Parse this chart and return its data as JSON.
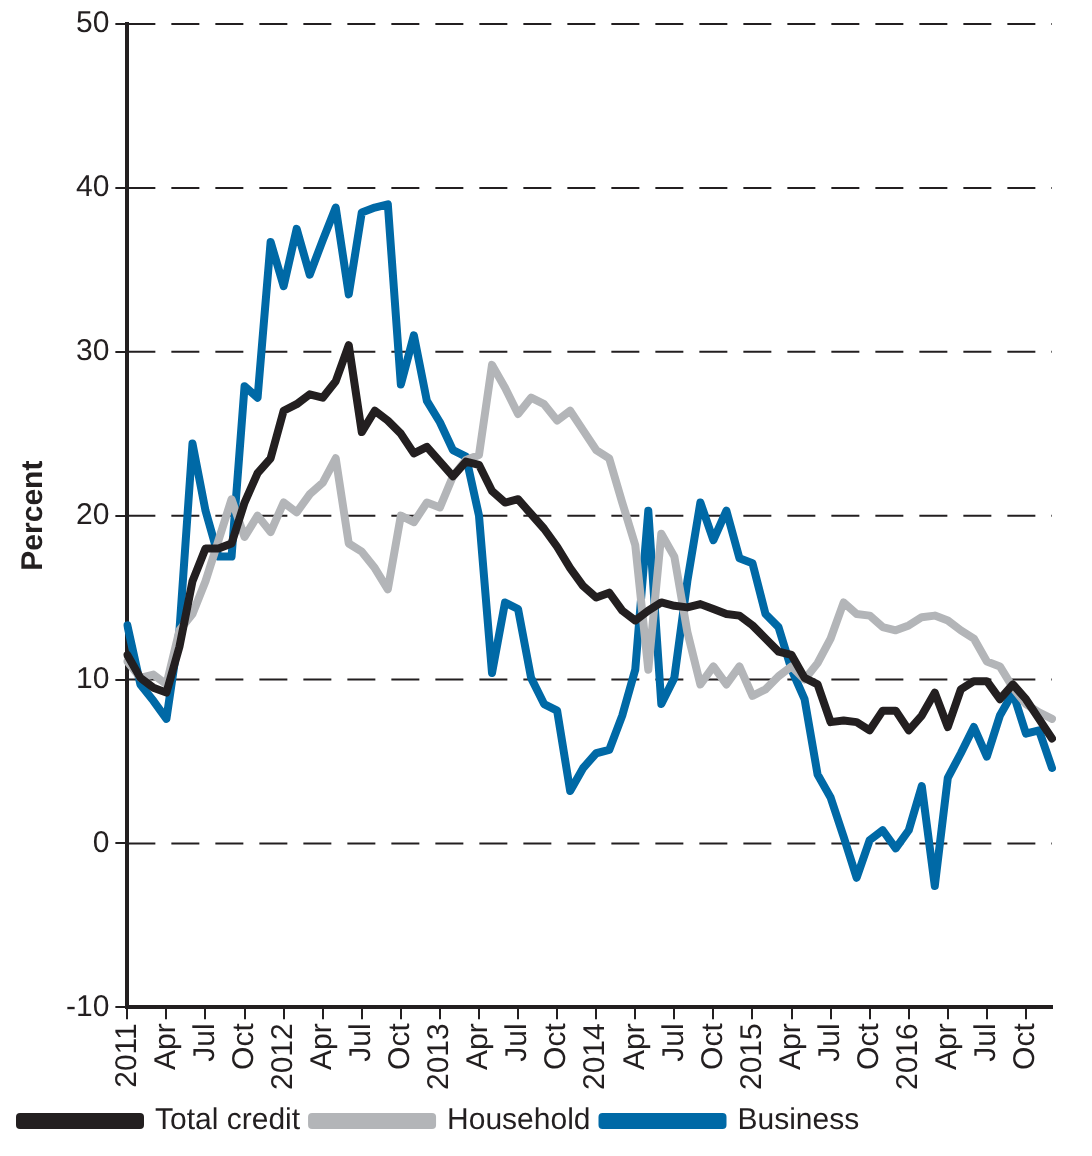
{
  "chart_data": {
    "type": "line",
    "ylabel": "Percent",
    "categories": [
      "2011",
      null,
      null,
      "Apr",
      null,
      null,
      "Jul",
      null,
      null,
      "Oct",
      null,
      null,
      "2012",
      null,
      null,
      "Apr",
      null,
      null,
      "Jul",
      null,
      null,
      "Oct",
      null,
      null,
      "2013",
      null,
      null,
      "Apr",
      null,
      null,
      "Jul",
      null,
      null,
      "Oct",
      null,
      null,
      "2014",
      null,
      null,
      "Apr",
      null,
      null,
      "Jul",
      null,
      null,
      "Oct",
      null,
      null,
      "2015",
      null,
      null,
      "Apr",
      null,
      null,
      "Jul",
      null,
      null,
      "Oct",
      null,
      null,
      "2016",
      null,
      null,
      "Apr",
      null,
      null,
      "Jul",
      null,
      null,
      "Oct",
      null,
      null
    ],
    "series": [
      {
        "name": "Total credit",
        "color": "#231f20",
        "values": [
          11.5,
          10.1,
          9.5,
          9.2,
          12,
          16,
          18,
          18,
          18.3,
          20.8,
          22.6,
          23.5,
          26.4,
          26.8,
          27.4,
          27.2,
          28.2,
          30.4,
          25.1,
          26.4,
          25.8,
          25,
          23.8,
          24.2,
          23.3,
          22.4,
          23.3,
          23.1,
          21.5,
          20.8,
          21,
          20.1,
          19.2,
          18.1,
          16.8,
          15.7,
          15,
          15.3,
          14.2,
          13.6,
          14.2,
          14.7,
          14.5,
          14.4,
          14.6,
          14.3,
          14,
          13.9,
          13.3,
          12.5,
          11.7,
          11.5,
          10.1,
          9.7,
          7.4,
          7.5,
          7.4,
          6.9,
          8.1,
          8.1,
          6.9,
          7.8,
          9.2,
          7.1,
          9.4,
          9.9,
          9.9,
          8.8,
          9.7,
          8.8,
          7.6,
          6.4
        ]
      },
      {
        "name": "Household",
        "color": "#b3b5b8",
        "values": [
          11.1,
          10.1,
          10.3,
          9.7,
          13,
          14,
          16,
          18.5,
          21,
          18.7,
          20,
          19,
          20.8,
          20.2,
          21.3,
          22,
          23.5,
          18.3,
          17.8,
          16.8,
          15.5,
          20,
          19.6,
          20.8,
          20.5,
          22.4,
          23.4,
          23.7,
          29.2,
          27.8,
          26.2,
          27.2,
          26.8,
          25.8,
          26.4,
          25.2,
          24,
          23.5,
          20.8,
          18.2,
          10.6,
          18.9,
          17.5,
          12.9,
          9.7,
          10.8,
          9.7,
          10.8,
          9,
          9.4,
          10.2,
          10.8,
          10,
          11,
          12.5,
          14.7,
          14,
          13.9,
          13.2,
          13,
          13.3,
          13.8,
          13.9,
          13.6,
          13,
          12.5,
          11.1,
          10.8,
          9.5,
          8.5,
          8,
          7.6
        ]
      },
      {
        "name": "Business",
        "color": "#0069a6",
        "values": [
          13.3,
          9.7,
          8.7,
          7.6,
          13,
          24.4,
          20.3,
          17.5,
          17.5,
          27.9,
          27.2,
          36.7,
          34,
          37.5,
          34.7,
          36.8,
          38.8,
          33.5,
          38.5,
          38.8,
          39,
          28,
          31,
          27,
          25.7,
          24,
          23.6,
          20,
          10.4,
          14.7,
          14.3,
          10.1,
          8.5,
          8.1,
          3.2,
          4.6,
          5.5,
          5.7,
          7.8,
          10.6,
          20.3,
          8.5,
          10.1,
          16,
          20.8,
          18.5,
          20.3,
          17.4,
          17.1,
          14,
          13.2,
          10.6,
          8.8,
          4.2,
          2.8,
          0.4,
          -2.1,
          0.2,
          0.8,
          -0.3,
          0.8,
          3.5,
          -2.6,
          4,
          5.5,
          7.1,
          5.3,
          7.8,
          9.2,
          6.7,
          6.9,
          4.6
        ]
      }
    ],
    "ylim": [
      -10,
      50
    ],
    "yticks": [
      -10,
      0,
      10,
      20,
      30,
      40,
      50
    ],
    "grid": "y",
    "legend": "bottom",
    "marker": "none",
    "line_style": "solid"
  }
}
